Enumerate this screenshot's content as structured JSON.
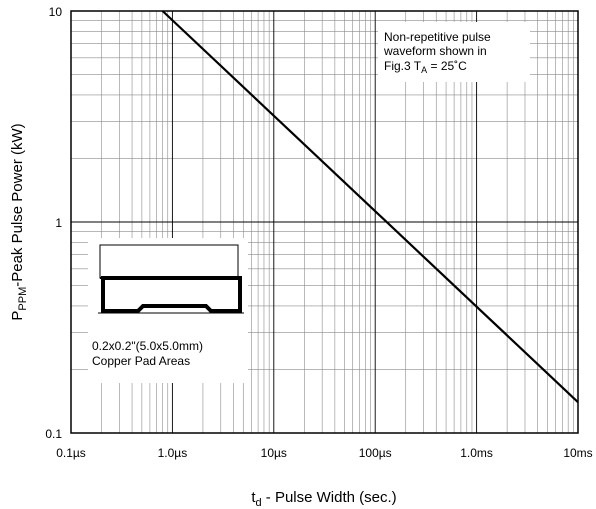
{
  "chart_data": {
    "type": "line",
    "x_scale": "log",
    "y_scale": "log",
    "xlim": [
      "0.1µs",
      "10ms"
    ],
    "ylim": [
      0.1,
      10
    ],
    "grid": true,
    "x_ticks": [
      "0.1µs",
      "1.0µs",
      "10µs",
      "100µs",
      "1.0ms",
      "10ms"
    ],
    "y_ticks": [
      "0.1",
      "1",
      "10"
    ],
    "xlabel": {
      "main": "t",
      "sub": "d",
      "rest": " - Pulse Width (sec.)"
    },
    "ylabel": {
      "main": "P",
      "sub": "PPM",
      "rest": "-Peak Pulse Power (kW)"
    },
    "series": [
      {
        "x": [
          "0.8µs",
          "10ms"
        ],
        "y": [
          10,
          0.14
        ]
      }
    ],
    "annotations": {
      "waveform": {
        "lines": [
          "Non-repetitive pulse",
          "waveform shown in"
        ],
        "last_prefix": "Fig.3 T",
        "last_sub": "A",
        "last_suffix": " = 25˚C"
      },
      "pad": {
        "lines": [
          "0.2x0.2\"(5.0x5.0mm)",
          "Copper Pad Areas"
        ]
      }
    }
  }
}
